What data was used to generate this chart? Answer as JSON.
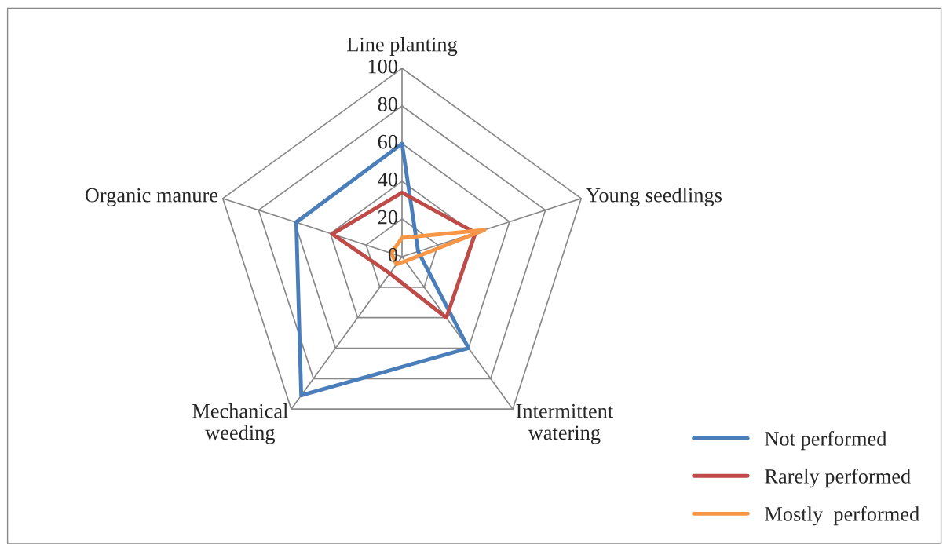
{
  "chart_data": {
    "type": "radar",
    "categories": [
      "Line planting",
      "Young seedlings",
      "Intermittent\nwatering",
      "Mechanical\nweeding",
      "Organic manure"
    ],
    "series": [
      {
        "name": "Not performed",
        "color": "#4a7ebb",
        "values": [
          60,
          9,
          60,
          91,
          59
        ]
      },
      {
        "name": "Rarely performed",
        "color": "#be4b48",
        "values": [
          34,
          41,
          40,
          11,
          39
        ]
      },
      {
        "name": "Mostly  performed",
        "color": "#f79646",
        "values": [
          10,
          46,
          3,
          5,
          6
        ]
      }
    ],
    "ylim": [
      0,
      100
    ],
    "yticks": [
      0,
      20,
      40,
      60,
      80,
      100
    ],
    "grid": true,
    "legend": "bottom right"
  }
}
